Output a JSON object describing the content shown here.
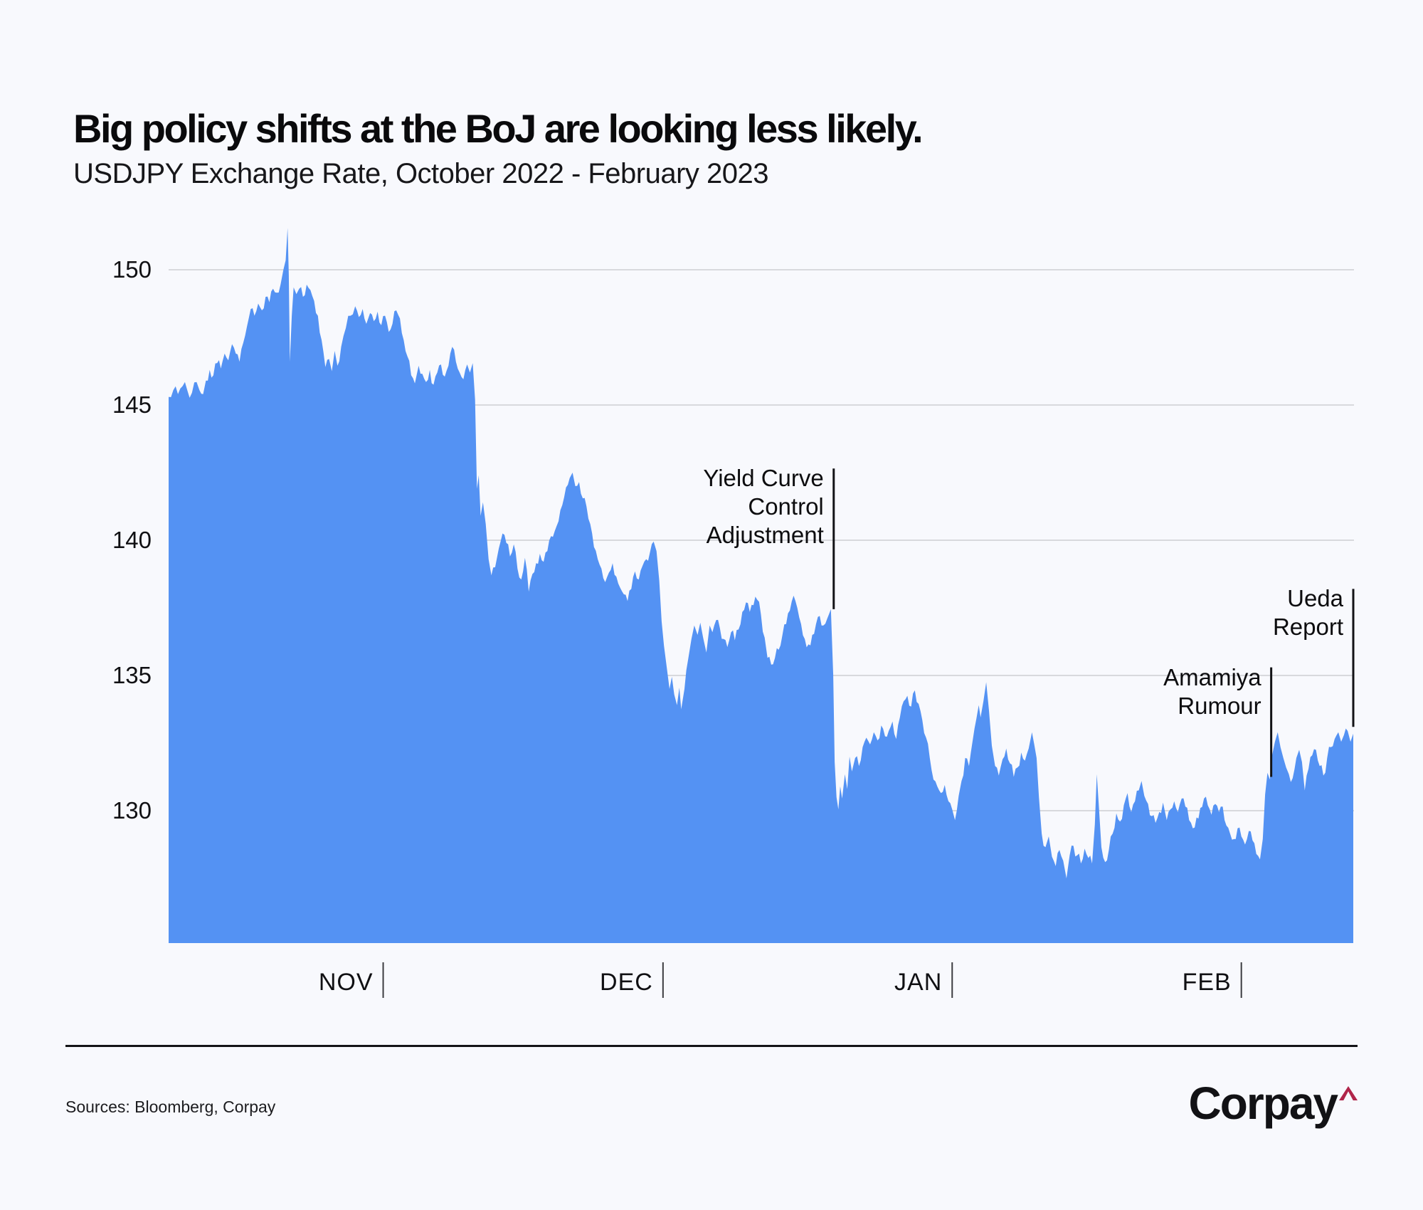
{
  "header": {
    "title": "Big policy shifts at the BoJ are looking less likely.",
    "subtitle": "USDJPY Exchange Rate, October 2022 - February 2023"
  },
  "footer": {
    "sources": "Sources: Bloomberg, Corpay",
    "logo_text": "Corpay",
    "logo_caret_color": "#b0254a"
  },
  "colors": {
    "background": "#f8f9fd",
    "area_fill": "#5492f3",
    "gridline": "#d8d9dd",
    "tick": "#3c3c40",
    "annotation_line": "#131316",
    "text": "#101013"
  },
  "chart_data": {
    "type": "area",
    "title": "USDJPY Exchange Rate, October 2022 - February 2023",
    "series_name": "USDJPY",
    "x_unit": "days since 2022-10-09",
    "x_domain": [
      0,
      127
    ],
    "ylim": [
      125.1,
      152.5
    ],
    "grid": true,
    "y_ticks": [
      150,
      145,
      140,
      135,
      130
    ],
    "x_ticks": [
      {
        "day": 23,
        "label": "NOV"
      },
      {
        "day": 53,
        "label": "DEC"
      },
      {
        "day": 84,
        "label": "JAN"
      },
      {
        "day": 115,
        "label": "FEB"
      }
    ],
    "annotations": [
      {
        "label": "Yield Curve\nControl\nAdjustment",
        "day": 71.3,
        "value_top": 142.65,
        "value_bottom": 137.45
      },
      {
        "label": "Amamiya\nRumour",
        "day": 118.2,
        "value_top": 135.3,
        "value_bottom": 131.25
      },
      {
        "label": "Ueda\nReport",
        "day": 127,
        "value_top": 138.2,
        "value_bottom": 133.1
      }
    ],
    "points": [
      [
        0,
        145.3
      ],
      [
        0.5,
        145.55
      ],
      [
        1,
        145.4
      ],
      [
        1.5,
        145.7
      ],
      [
        2,
        145.55
      ],
      [
        2.5,
        145.45
      ],
      [
        3,
        145.85
      ],
      [
        3.3,
        145.55
      ],
      [
        3.7,
        145.4
      ],
      [
        4,
        145.9
      ],
      [
        4.4,
        146.3
      ],
      [
        4.8,
        146.1
      ],
      [
        5.2,
        146.55
      ],
      [
        5.6,
        146.35
      ],
      [
        6,
        146.9
      ],
      [
        6.4,
        146.65
      ],
      [
        6.8,
        147.25
      ],
      [
        7.2,
        146.9
      ],
      [
        7.6,
        146.6
      ],
      [
        8,
        147.3
      ],
      [
        8.4,
        147.9
      ],
      [
        8.8,
        148.55
      ],
      [
        9.2,
        148.3
      ],
      [
        9.6,
        148.75
      ],
      [
        10,
        148.5
      ],
      [
        10.4,
        149.0
      ],
      [
        10.8,
        148.8
      ],
      [
        11.2,
        149.3
      ],
      [
        11.6,
        149.15
      ],
      [
        12,
        149.45
      ],
      [
        12.3,
        150.0
      ],
      [
        12.55,
        150.35
      ],
      [
        12.75,
        151.55
      ],
      [
        12.88,
        149.8
      ],
      [
        13.0,
        146.6
      ],
      [
        13.2,
        148.3
      ],
      [
        13.4,
        149.35
      ],
      [
        13.7,
        149.1
      ],
      [
        14,
        149.3
      ],
      [
        14.4,
        149.0
      ],
      [
        14.8,
        149.45
      ],
      [
        15.2,
        149.25
      ],
      [
        15.6,
        148.85
      ],
      [
        16,
        148.3
      ],
      [
        16.4,
        147.4
      ],
      [
        16.8,
        146.4
      ],
      [
        17.2,
        146.7
      ],
      [
        17.5,
        146.25
      ],
      [
        17.8,
        147.0
      ],
      [
        18.1,
        146.45
      ],
      [
        18.5,
        147.15
      ],
      [
        19,
        147.85
      ],
      [
        19.5,
        148.3
      ],
      [
        20,
        148.65
      ],
      [
        20.4,
        148.25
      ],
      [
        20.8,
        148.55
      ],
      [
        21.2,
        148.0
      ],
      [
        21.6,
        148.4
      ],
      [
        22,
        148.1
      ],
      [
        22.4,
        148.45
      ],
      [
        22.8,
        147.95
      ],
      [
        23.2,
        148.3
      ],
      [
        23.6,
        147.7
      ],
      [
        24,
        148.0
      ],
      [
        24.4,
        148.5
      ],
      [
        24.8,
        148.2
      ],
      [
        25.2,
        147.4
      ],
      [
        25.6,
        146.8
      ],
      [
        26,
        146.1
      ],
      [
        26.4,
        145.8
      ],
      [
        26.8,
        146.45
      ],
      [
        27.2,
        146.15
      ],
      [
        27.6,
        145.85
      ],
      [
        28,
        146.3
      ],
      [
        28.4,
        145.75
      ],
      [
        28.8,
        146.2
      ],
      [
        29.2,
        146.5
      ],
      [
        29.6,
        146.05
      ],
      [
        30,
        146.45
      ],
      [
        30.4,
        147.15
      ],
      [
        30.8,
        146.6
      ],
      [
        31.2,
        146.2
      ],
      [
        31.6,
        145.95
      ],
      [
        32,
        146.5
      ],
      [
        32.3,
        146.2
      ],
      [
        32.6,
        146.55
      ],
      [
        32.85,
        145.2
      ],
      [
        33.05,
        141.9
      ],
      [
        33.25,
        142.4
      ],
      [
        33.45,
        140.9
      ],
      [
        33.7,
        141.4
      ],
      [
        34,
        140.6
      ],
      [
        34.3,
        139.3
      ],
      [
        34.6,
        138.7
      ],
      [
        35,
        139.0
      ],
      [
        35.4,
        139.7
      ],
      [
        35.8,
        140.25
      ],
      [
        36.2,
        139.9
      ],
      [
        36.6,
        139.4
      ],
      [
        37,
        139.85
      ],
      [
        37.4,
        138.95
      ],
      [
        37.8,
        138.55
      ],
      [
        38.2,
        139.35
      ],
      [
        38.6,
        138.1
      ],
      [
        39,
        138.75
      ],
      [
        39.4,
        139.15
      ],
      [
        39.8,
        139.5
      ],
      [
        40.2,
        139.2
      ],
      [
        40.6,
        139.6
      ],
      [
        41,
        140.15
      ],
      [
        41.4,
        140.35
      ],
      [
        41.8,
        140.7
      ],
      [
        42.2,
        141.3
      ],
      [
        42.6,
        141.95
      ],
      [
        43,
        142.3
      ],
      [
        43.3,
        142.5
      ],
      [
        43.6,
        142.0
      ],
      [
        44,
        142.15
      ],
      [
        44.4,
        141.55
      ],
      [
        44.8,
        141.25
      ],
      [
        45.2,
        140.6
      ],
      [
        45.6,
        139.75
      ],
      [
        46,
        139.3
      ],
      [
        46.4,
        138.95
      ],
      [
        46.8,
        138.45
      ],
      [
        47.2,
        138.8
      ],
      [
        47.6,
        139.15
      ],
      [
        48,
        138.65
      ],
      [
        48.4,
        138.25
      ],
      [
        48.8,
        138.0
      ],
      [
        49.2,
        137.75
      ],
      [
        49.6,
        138.2
      ],
      [
        50,
        138.85
      ],
      [
        50.4,
        138.55
      ],
      [
        50.8,
        139.05
      ],
      [
        51.2,
        139.3
      ],
      [
        51.6,
        139.55
      ],
      [
        52,
        139.95
      ],
      [
        52.3,
        139.6
      ],
      [
        52.6,
        138.5
      ],
      [
        52.85,
        137.0
      ],
      [
        53.1,
        136.1
      ],
      [
        53.4,
        135.3
      ],
      [
        53.7,
        134.5
      ],
      [
        53.95,
        134.95
      ],
      [
        54.2,
        134.3
      ],
      [
        54.5,
        133.9
      ],
      [
        54.75,
        134.55
      ],
      [
        54.95,
        133.75
      ],
      [
        55.3,
        134.5
      ],
      [
        55.7,
        135.6
      ],
      [
        56.05,
        136.35
      ],
      [
        56.35,
        136.85
      ],
      [
        56.7,
        136.5
      ],
      [
        57,
        136.95
      ],
      [
        57.3,
        136.4
      ],
      [
        57.65,
        135.85
      ],
      [
        58,
        136.85
      ],
      [
        58.3,
        136.6
      ],
      [
        58.7,
        137.05
      ],
      [
        59.1,
        136.75
      ],
      [
        59.5,
        136.35
      ],
      [
        59.9,
        136.05
      ],
      [
        60.3,
        136.6
      ],
      [
        60.7,
        136.3
      ],
      [
        61.1,
        136.7
      ],
      [
        61.5,
        137.35
      ],
      [
        61.9,
        137.7
      ],
      [
        62.3,
        137.35
      ],
      [
        62.7,
        137.6
      ],
      [
        63.1,
        137.8
      ],
      [
        63.5,
        137.25
      ],
      [
        63.9,
        136.4
      ],
      [
        64.2,
        135.65
      ],
      [
        64.6,
        135.4
      ],
      [
        65,
        135.65
      ],
      [
        65.4,
        135.95
      ],
      [
        65.8,
        136.5
      ],
      [
        66.2,
        136.9
      ],
      [
        66.6,
        137.4
      ],
      [
        67,
        137.95
      ],
      [
        67.4,
        137.5
      ],
      [
        67.8,
        136.9
      ],
      [
        68.2,
        136.35
      ],
      [
        68.6,
        136.15
      ],
      [
        69,
        136.5
      ],
      [
        69.4,
        136.9
      ],
      [
        69.8,
        137.2
      ],
      [
        70.2,
        136.85
      ],
      [
        70.6,
        137.1
      ],
      [
        71,
        137.45
      ],
      [
        71.25,
        135.0
      ],
      [
        71.4,
        131.8
      ],
      [
        71.6,
        130.5
      ],
      [
        71.8,
        130.05
      ],
      [
        72,
        130.9
      ],
      [
        72.2,
        130.45
      ],
      [
        72.5,
        131.35
      ],
      [
        72.75,
        130.8
      ],
      [
        73,
        132.0
      ],
      [
        73.25,
        131.45
      ],
      [
        73.6,
        131.95
      ],
      [
        74,
        131.65
      ],
      [
        74.4,
        132.35
      ],
      [
        74.8,
        132.7
      ],
      [
        75.2,
        132.45
      ],
      [
        75.6,
        132.9
      ],
      [
        76,
        132.6
      ],
      [
        76.4,
        133.15
      ],
      [
        76.8,
        132.75
      ],
      [
        77.2,
        132.95
      ],
      [
        77.6,
        133.3
      ],
      [
        78,
        132.65
      ],
      [
        78.4,
        133.45
      ],
      [
        78.8,
        134.05
      ],
      [
        79.2,
        134.25
      ],
      [
        79.6,
        133.85
      ],
      [
        80,
        134.45
      ],
      [
        80.4,
        133.95
      ],
      [
        80.8,
        133.35
      ],
      [
        81.2,
        132.7
      ],
      [
        81.6,
        131.95
      ],
      [
        82,
        131.15
      ],
      [
        82.4,
        130.9
      ],
      [
        82.8,
        130.65
      ],
      [
        83.2,
        130.95
      ],
      [
        83.6,
        130.35
      ],
      [
        84,
        130.05
      ],
      [
        84.3,
        129.65
      ],
      [
        84.7,
        130.55
      ],
      [
        85,
        131.1
      ],
      [
        85.4,
        131.95
      ],
      [
        85.8,
        131.65
      ],
      [
        86.2,
        132.6
      ],
      [
        86.6,
        133.4
      ],
      [
        86.85,
        133.9
      ],
      [
        87.05,
        133.45
      ],
      [
        87.35,
        134.05
      ],
      [
        87.65,
        134.75
      ],
      [
        87.95,
        133.7
      ],
      [
        88.25,
        132.4
      ],
      [
        88.6,
        131.65
      ],
      [
        89,
        131.3
      ],
      [
        89.4,
        131.9
      ],
      [
        89.8,
        132.3
      ],
      [
        90.2,
        131.75
      ],
      [
        90.6,
        131.25
      ],
      [
        91,
        131.6
      ],
      [
        91.4,
        132.15
      ],
      [
        91.8,
        131.85
      ],
      [
        92.2,
        132.3
      ],
      [
        92.55,
        132.9
      ],
      [
        92.8,
        132.45
      ],
      [
        93.05,
        131.95
      ],
      [
        93.3,
        130.5
      ],
      [
        93.6,
        129.15
      ],
      [
        94,
        128.65
      ],
      [
        94.35,
        129.05
      ],
      [
        94.7,
        128.3
      ],
      [
        95.1,
        127.95
      ],
      [
        95.5,
        128.55
      ],
      [
        95.9,
        128.15
      ],
      [
        96.25,
        127.5
      ],
      [
        96.6,
        128.35
      ],
      [
        97,
        128.7
      ],
      [
        97.4,
        128.35
      ],
      [
        97.8,
        128.05
      ],
      [
        98.2,
        128.6
      ],
      [
        98.6,
        128.25
      ],
      [
        99,
        128.05
      ],
      [
        99.3,
        129.5
      ],
      [
        99.5,
        131.35
      ],
      [
        99.7,
        130.3
      ],
      [
        100,
        128.65
      ],
      [
        100.4,
        128.1
      ],
      [
        100.8,
        128.55
      ],
      [
        101.2,
        129.15
      ],
      [
        101.6,
        129.9
      ],
      [
        102,
        129.6
      ],
      [
        102.4,
        130.2
      ],
      [
        102.8,
        130.65
      ],
      [
        103.2,
        129.95
      ],
      [
        103.6,
        130.35
      ],
      [
        104,
        130.75
      ],
      [
        104.3,
        131.1
      ],
      [
        104.6,
        130.55
      ],
      [
        105,
        130.25
      ],
      [
        105.4,
        129.8
      ],
      [
        105.8,
        129.55
      ],
      [
        106.2,
        129.95
      ],
      [
        106.6,
        130.3
      ],
      [
        107,
        129.65
      ],
      [
        107.4,
        130.05
      ],
      [
        107.8,
        130.35
      ],
      [
        108.2,
        129.95
      ],
      [
        108.6,
        130.45
      ],
      [
        109,
        130.15
      ],
      [
        109.4,
        129.65
      ],
      [
        109.8,
        129.35
      ],
      [
        110.2,
        129.75
      ],
      [
        110.6,
        130.1
      ],
      [
        111,
        130.45
      ],
      [
        111.4,
        130.2
      ],
      [
        111.8,
        129.85
      ],
      [
        112.2,
        130.25
      ],
      [
        112.6,
        129.95
      ],
      [
        113,
        130.15
      ],
      [
        113.4,
        129.45
      ],
      [
        113.8,
        129.15
      ],
      [
        114.2,
        128.95
      ],
      [
        114.6,
        129.35
      ],
      [
        115,
        129.05
      ],
      [
        115.4,
        128.75
      ],
      [
        115.8,
        129.25
      ],
      [
        116.2,
        128.9
      ],
      [
        116.6,
        128.4
      ],
      [
        117,
        128.2
      ],
      [
        117.3,
        128.95
      ],
      [
        117.55,
        130.6
      ],
      [
        117.8,
        131.4
      ],
      [
        118.05,
        131.15
      ],
      [
        118.3,
        132.05
      ],
      [
        118.6,
        132.55
      ],
      [
        118.9,
        132.9
      ],
      [
        119.2,
        132.35
      ],
      [
        119.5,
        131.95
      ],
      [
        119.8,
        131.6
      ],
      [
        120.1,
        131.35
      ],
      [
        120.5,
        131.2
      ],
      [
        120.9,
        131.95
      ],
      [
        121.2,
        132.25
      ],
      [
        121.5,
        131.8
      ],
      [
        121.8,
        130.75
      ],
      [
        122.2,
        131.55
      ],
      [
        122.6,
        132.05
      ],
      [
        123,
        132.25
      ],
      [
        123.4,
        131.65
      ],
      [
        123.8,
        131.3
      ],
      [
        124.2,
        131.95
      ],
      [
        124.6,
        132.35
      ],
      [
        125,
        132.65
      ],
      [
        125.4,
        132.9
      ],
      [
        125.7,
        132.55
      ],
      [
        126,
        132.8
      ],
      [
        126.4,
        132.95
      ],
      [
        126.7,
        132.55
      ],
      [
        127,
        132.85
      ]
    ]
  }
}
